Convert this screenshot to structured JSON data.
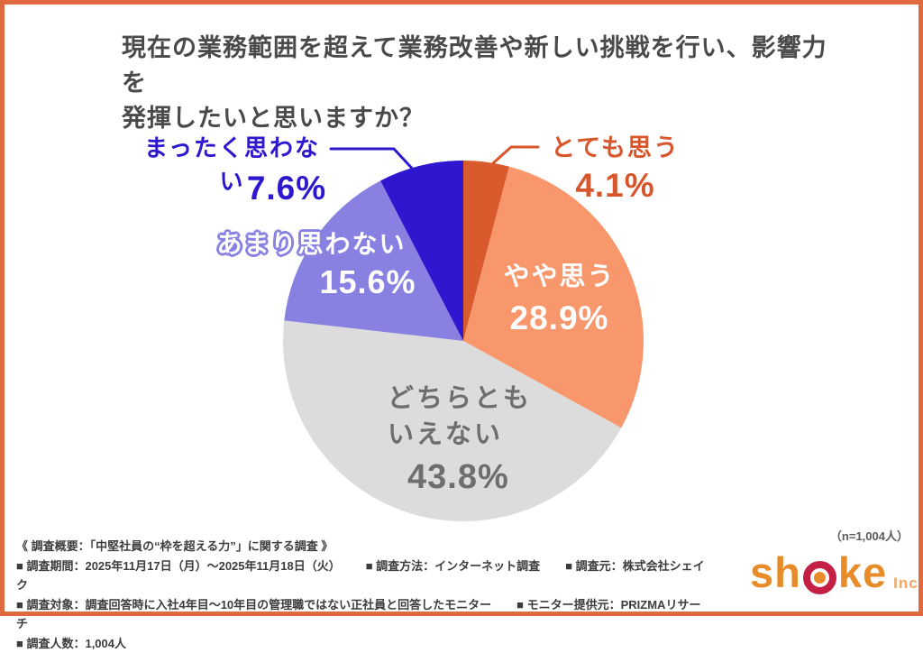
{
  "title": {
    "line1": "現在の業務範囲を超えて業務改善や新しい挑戦を行い、影響力を",
    "line2": "発揮したいと思いますか？"
  },
  "chart_data": {
    "type": "pie",
    "title": "現在の業務範囲を超えて業務改善や新しい挑戦を行い、影響力を発揮したいと思いますか？",
    "unit": "%",
    "start_angle_deg": 0,
    "direction": "clockwise",
    "slices": [
      {
        "key": "totemo-omou",
        "label": "とても思う",
        "value": 4.1,
        "color": "#d95a2d"
      },
      {
        "key": "yaya-omou",
        "label": "やや思う",
        "value": 28.9,
        "color": "#f9976c"
      },
      {
        "key": "dochiratomo",
        "label": "どちらともいえない",
        "value": 43.8,
        "color": "#dcdcdc"
      },
      {
        "key": "amari-omowanai",
        "label": "あまり思わない",
        "value": 15.6,
        "color": "#8981e2"
      },
      {
        "key": "mattaku-omowanai",
        "label": "まったく思わない",
        "value": 7.6,
        "color": "#2f17d0"
      }
    ]
  },
  "slice_labels": {
    "totemo": {
      "name": "とても思う",
      "pct": "4.1%"
    },
    "yaya": {
      "name": "やや思う",
      "pct": "28.9%"
    },
    "dochira": {
      "line1": "どちらとも",
      "line2": "いえない",
      "pct": "43.8%"
    },
    "amari": {
      "name": "あまり思わない",
      "pct": "15.6%"
    },
    "mattaku": {
      "name": "まったく思わない",
      "pct": "7.6%"
    }
  },
  "footer": {
    "n_note": "（n=1,004人）",
    "heading": "《 調査概要：「中堅社員の“枠を超える力”」に関する調査 》",
    "row_period": "■ 調査期間：2025年11月17日（月）～2025年11月18日（火）",
    "row_method": "■ 調査方法：インターネット調査",
    "row_source": "■ 調査元：株式会社シェイク",
    "row_target": "■ 調査対象：調査回答時に入社4年目～10年目の管理職ではない正社員と回答したモニター",
    "row_monitor": "■ モニター提供元：PRIZMAリサーチ",
    "row_count": "■ 調査人数：1,004人"
  },
  "logo": {
    "sh": "sh",
    "ke": "ke",
    "inc": "Inc."
  },
  "colors": {
    "frame_orange": "#e0693f",
    "title_gray": "#4a4a4a",
    "label_orange": "#d8562b",
    "label_blue": "#2e18ce",
    "purple": "#8981e2",
    "neutral_text": "#6e6e6e",
    "footer_text": "#3c3c3c",
    "n_text": "#5a5a5a",
    "logo_orange": "#e78c28",
    "logo_red": "#c42045",
    "logo_inc": "#efa463"
  }
}
